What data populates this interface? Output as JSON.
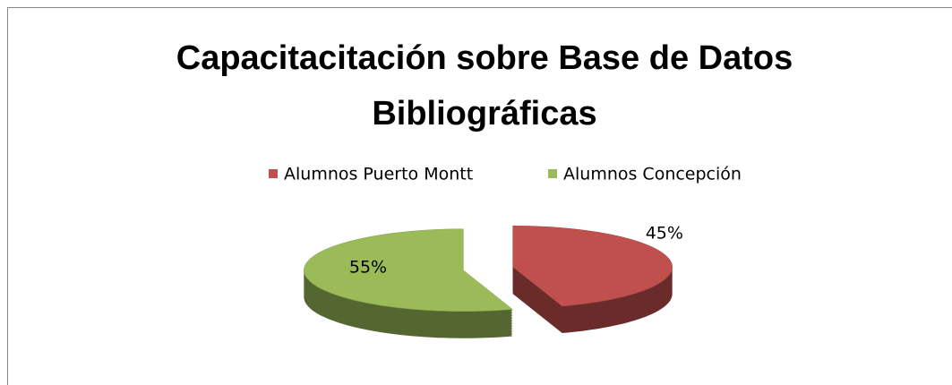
{
  "chart_data": {
    "type": "pie",
    "title": "Capacitacitación sobre Base de Datos Bibliográficas",
    "categories": [
      "Alumnos Puerto Montt",
      "Alumnos Concepción"
    ],
    "values": [
      45,
      55
    ],
    "value_labels": [
      "45%",
      "55%"
    ],
    "colors": [
      "#c0504d",
      "#9bbb59"
    ],
    "legend": "top"
  }
}
